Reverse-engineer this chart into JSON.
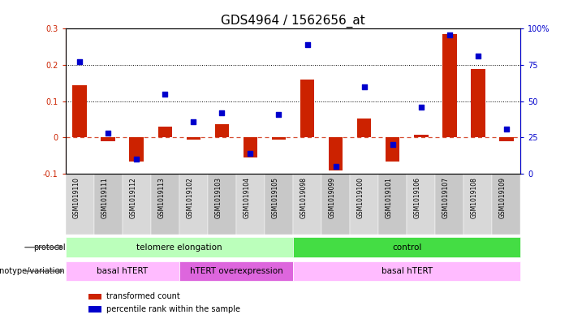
{
  "title": "GDS4964 / 1562656_at",
  "samples": [
    "GSM1019110",
    "GSM1019111",
    "GSM1019112",
    "GSM1019113",
    "GSM1019102",
    "GSM1019103",
    "GSM1019104",
    "GSM1019105",
    "GSM1019098",
    "GSM1019099",
    "GSM1019100",
    "GSM1019101",
    "GSM1019106",
    "GSM1019107",
    "GSM1019108",
    "GSM1019109"
  ],
  "bar_values": [
    0.145,
    -0.01,
    -0.065,
    0.03,
    -0.005,
    0.037,
    -0.055,
    -0.005,
    0.16,
    -0.09,
    0.053,
    -0.065,
    0.008,
    0.285,
    0.19,
    -0.01
  ],
  "scatter_values_pct": [
    77,
    28,
    10,
    55,
    36,
    42,
    14,
    41,
    89,
    5,
    60,
    20,
    46,
    96,
    81,
    31
  ],
  "bar_color": "#cc2200",
  "scatter_color": "#0000cc",
  "ylim_left": [
    -0.1,
    0.3
  ],
  "yticks_left": [
    -0.1,
    0.0,
    0.1,
    0.2,
    0.3
  ],
  "yticks_right": [
    0,
    25,
    50,
    75,
    100
  ],
  "ytick_labels_right": [
    "0",
    "25",
    "50",
    "75",
    "100%"
  ],
  "hline_y": 0.0,
  "dotted_lines": [
    0.1,
    0.2
  ],
  "protocol_groups": [
    {
      "label": "telomere elongation",
      "start": 0,
      "end": 8,
      "color": "#bbffbb"
    },
    {
      "label": "control",
      "start": 8,
      "end": 16,
      "color": "#44dd44"
    }
  ],
  "genotype_groups": [
    {
      "label": "basal hTERT",
      "start": 0,
      "end": 4,
      "color": "#ffbbff"
    },
    {
      "label": "hTERT overexpression",
      "start": 4,
      "end": 8,
      "color": "#dd66dd"
    },
    {
      "label": "basal hTERT",
      "start": 8,
      "end": 16,
      "color": "#ffbbff"
    }
  ],
  "legend_items": [
    {
      "label": "transformed count",
      "color": "#cc2200"
    },
    {
      "label": "percentile rank within the sample",
      "color": "#0000cc"
    }
  ],
  "protocol_label": "protocol",
  "genotype_label": "genotype/variation",
  "title_fontsize": 11,
  "tick_fontsize": 7,
  "annot_fontsize": 7.5
}
